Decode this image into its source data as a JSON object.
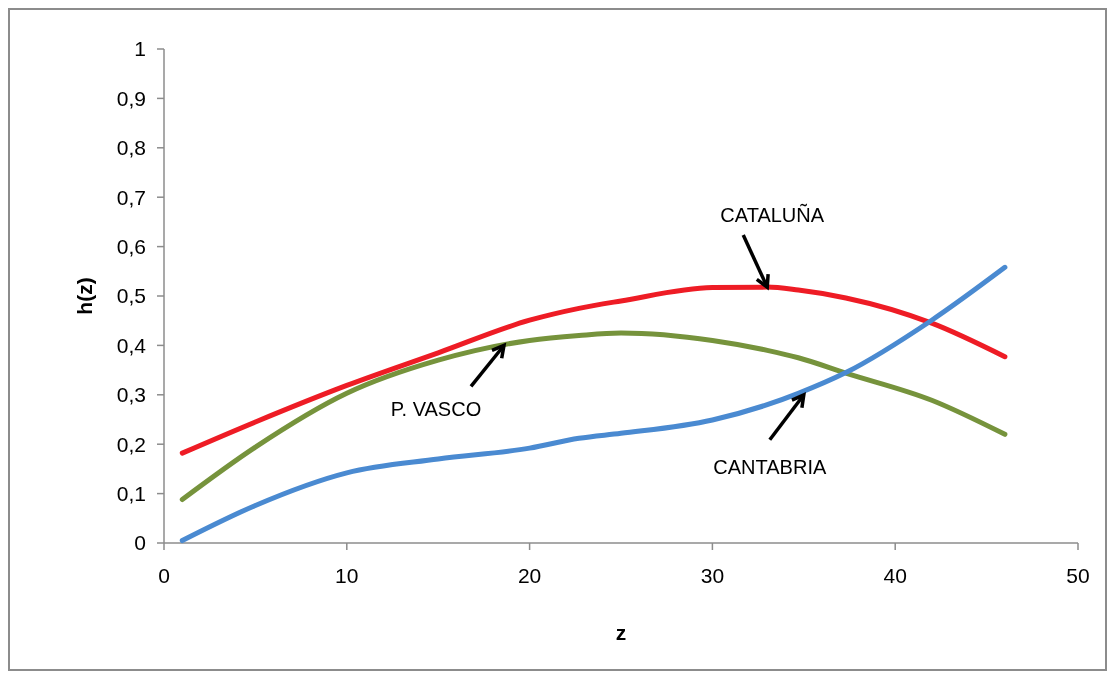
{
  "chart_data": {
    "type": "line",
    "xlabel": "z",
    "ylabel": "h(z)",
    "xlim": [
      0,
      50
    ],
    "xticks": [
      0,
      10,
      20,
      30,
      40,
      50
    ],
    "ylim": [
      0,
      1
    ],
    "yticks": [
      0,
      {
        "value": 0.1,
        "label": "0,1"
      },
      {
        "value": 0.2,
        "label": "0,2"
      },
      {
        "value": 0.3,
        "label": "0,3"
      },
      {
        "value": 0.4,
        "label": "0,4"
      },
      {
        "value": 0.5,
        "label": "0,5"
      },
      {
        "value": 0.6,
        "label": "0,6"
      },
      {
        "value": 0.7,
        "label": "0,7"
      },
      {
        "value": 0.8,
        "label": "0,8"
      },
      {
        "value": 0.9,
        "label": "0,9"
      },
      1
    ],
    "grid": false,
    "marker": "none",
    "line_style": "solid",
    "x": [
      1,
      5,
      10,
      15,
      20,
      22.7,
      25,
      30,
      33,
      34.7,
      37.3,
      42,
      46
    ],
    "series": [
      {
        "color": "#ee1c25",
        "values": [
          0.182,
          0.245,
          0.319,
          0.385,
          0.451,
          0.475,
          0.49,
          0.517,
          0.518,
          0.512,
          0.496,
          0.445,
          0.377
        ]
      },
      {
        "color": "#76933c",
        "values": [
          0.088,
          0.194,
          0.303,
          0.37,
          0.41,
          0.42,
          0.425,
          0.41,
          0.39,
          0.375,
          0.344,
          0.289,
          0.22
        ]
      },
      {
        "color": "#4a8ad1",
        "values": [
          0.005,
          0.076,
          0.142,
          0.17,
          0.192,
          0.212,
          0.222,
          0.249,
          0.28,
          0.303,
          0.345,
          0.451,
          0.558
        ]
      }
    ],
    "annotations": [
      {
        "text": "CATALUÑA",
        "x": 33,
        "y": 0.518
      },
      {
        "text": "P. VASCO",
        "x": 18.6,
        "y": 0.4
      },
      {
        "text": "CANTABRIA",
        "x": 35,
        "y": 0.3
      }
    ]
  }
}
